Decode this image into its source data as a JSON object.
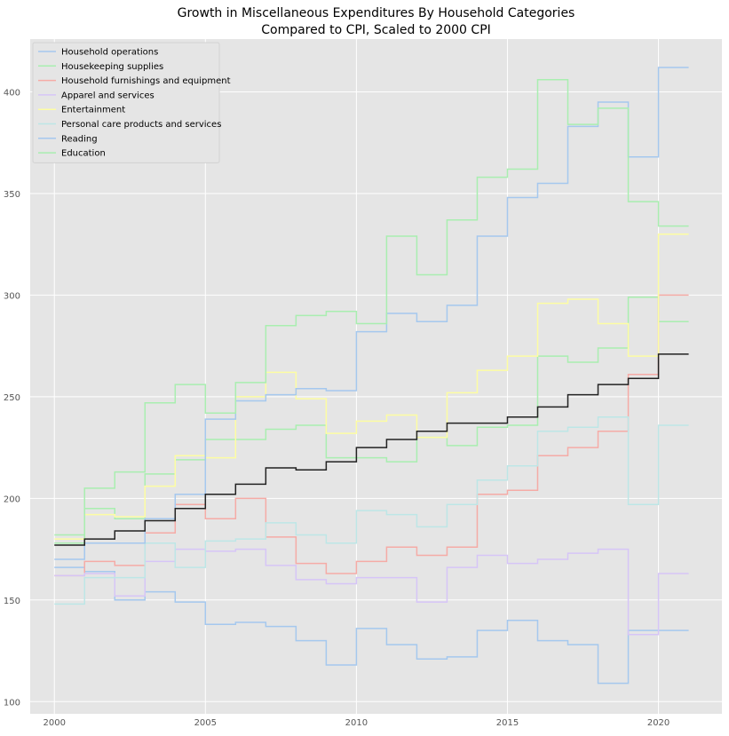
{
  "chart_data": {
    "type": "line",
    "title_lines": [
      "Growth in Miscellaneous Expenditures By Household Categories",
      "Compared to CPI, Scaled to 2000 CPI"
    ],
    "xlabel": "",
    "ylabel": "",
    "x_ticks": [
      2000,
      2005,
      2010,
      2015,
      2020
    ],
    "y_ticks": [
      100,
      150,
      200,
      250,
      300,
      350,
      400
    ],
    "xlim": [
      1999.2,
      2022.1
    ],
    "ylim": [
      94,
      426
    ],
    "grid": true,
    "legend_position": "top-left",
    "step": "post",
    "years": [
      2000,
      2001,
      2002,
      2003,
      2004,
      2005,
      2006,
      2007,
      2008,
      2009,
      2010,
      2011,
      2012,
      2013,
      2014,
      2015,
      2016,
      2017,
      2018,
      2019,
      2020,
      2021
    ],
    "series": [
      {
        "name": "Household operations",
        "color": "#a5c8ee",
        "values": [
          166,
          164,
          150,
          154,
          149,
          138,
          139,
          137,
          130,
          118,
          136,
          128,
          121,
          122,
          135,
          140,
          130,
          128,
          109,
          135,
          135,
          135
        ]
      },
      {
        "name": "Housekeeping supplies",
        "color": "#a9eeb0",
        "values": [
          182,
          195,
          190,
          212,
          219,
          229,
          229,
          234,
          236,
          220,
          220,
          218,
          230,
          226,
          235,
          236,
          270,
          267,
          274,
          299,
          287,
          287
        ]
      },
      {
        "name": "Household furnishings and equipment",
        "color": "#f5aba6",
        "values": [
          162,
          169,
          167,
          183,
          197,
          190,
          200,
          181,
          168,
          163,
          169,
          176,
          172,
          176,
          202,
          204,
          221,
          225,
          233,
          261,
          300,
          300
        ]
      },
      {
        "name": "Apparel and services",
        "color": "#d6c5f7",
        "values": [
          162,
          163,
          152,
          169,
          175,
          174,
          175,
          167,
          160,
          158,
          161,
          161,
          149,
          166,
          172,
          168,
          170,
          173,
          175,
          133,
          163,
          163
        ]
      },
      {
        "name": "Entertainment",
        "color": "#fdfda3",
        "values": [
          180,
          192,
          191,
          206,
          221,
          220,
          250,
          262,
          249,
          232,
          238,
          241,
          230,
          252,
          263,
          270,
          296,
          298,
          286,
          270,
          330,
          330
        ]
      },
      {
        "name": "Personal care products and services",
        "color": "#bde6e6",
        "values": [
          148,
          161,
          161,
          178,
          166,
          179,
          180,
          188,
          182,
          178,
          194,
          192,
          186,
          197,
          209,
          216,
          233,
          235,
          240,
          197,
          236,
          236
        ]
      },
      {
        "name": "Reading",
        "color": "#a5c8ee",
        "values": [
          170,
          178,
          178,
          190,
          202,
          239,
          248,
          251,
          254,
          253,
          282,
          291,
          287,
          295,
          329,
          348,
          355,
          383,
          395,
          368,
          412,
          412
        ]
      },
      {
        "name": "Education",
        "color": "#a9eeb0",
        "values": [
          178,
          205,
          213,
          247,
          256,
          242,
          257,
          285,
          290,
          292,
          286,
          329,
          310,
          337,
          358,
          362,
          406,
          384,
          392,
          346,
          334,
          334
        ]
      },
      {
        "name": "",
        "color": "#222222",
        "values": [
          177,
          180,
          184,
          189,
          195,
          202,
          207,
          215,
          214,
          218,
          225,
          229,
          233,
          237,
          237,
          240,
          245,
          251,
          256,
          259,
          271,
          271
        ]
      }
    ]
  }
}
